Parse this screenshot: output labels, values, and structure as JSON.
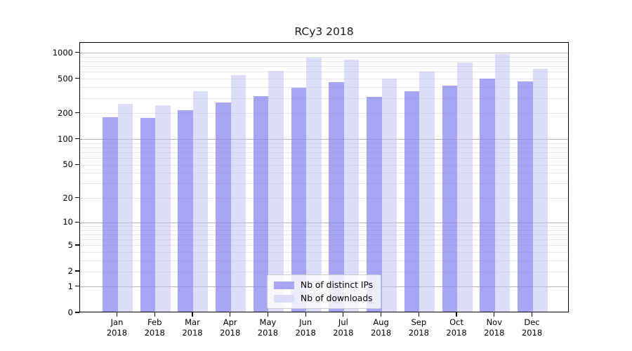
{
  "chart_data": {
    "type": "bar",
    "title": "RCy3 2018",
    "categories": [
      "Jan",
      "Feb",
      "Mar",
      "Apr",
      "May",
      "Jun",
      "Jul",
      "Aug",
      "Sep",
      "Oct",
      "Nov",
      "Dec"
    ],
    "year_label": "2018",
    "series": [
      {
        "name": "Nb of distinct IPs",
        "color": "rgba(132,132,240,0.72)",
        "swatch_color": "#a6a6f4",
        "values": [
          174,
          171,
          209,
          261,
          306,
          383,
          448,
          300,
          346,
          404,
          486,
          455
        ]
      },
      {
        "name": "Nb of downloads",
        "color": "rgba(187,187,245,0.5)",
        "swatch_color": "#dcdcfa",
        "values": [
          248,
          239,
          347,
          535,
          595,
          853,
          806,
          487,
          591,
          744,
          940,
          640
        ]
      }
    ],
    "xlabel": "",
    "ylabel": "",
    "yscale": "log1p",
    "ylim": [
      0,
      1300
    ],
    "ytick_labels": [
      "1000",
      "500",
      "200",
      "100",
      "50",
      "20",
      "10",
      "5",
      "2",
      "1",
      "0"
    ],
    "yticks": [
      1000,
      500,
      200,
      100,
      50,
      20,
      10,
      5,
      2,
      1,
      0
    ],
    "grid": {
      "major_decade_color": "#b4b4b4",
      "minor_color": "#e7e7e7",
      "legend_border_color": "#cccccc"
    },
    "legend_position": "lower center"
  }
}
